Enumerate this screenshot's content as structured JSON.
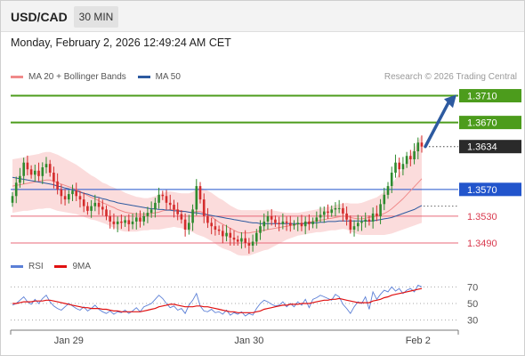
{
  "header": {
    "symbol": "USD/CAD",
    "timeframe": "30 MIN",
    "datetime": "Monday, February 2, 2026 12:49:24 AM CET"
  },
  "legend": {
    "main": [
      {
        "label": "MA 20 + Bollinger Bands",
        "color": "#f08a8a"
      },
      {
        "label": "MA 50",
        "color": "#2d5aa0"
      }
    ],
    "indicator": [
      {
        "label": "RSI",
        "color": "#5b7fd6"
      },
      {
        "label": "9MA",
        "color": "#e01010"
      }
    ],
    "source": "Research © 2026 Trading Central"
  },
  "colors": {
    "bull": "#2e8b2e",
    "bear": "#d42c2c",
    "target": "#4c9c1c",
    "pivot": "#2255cc",
    "support": "#e86a7a",
    "current": "#2a2a2a",
    "band": "#fbdcdc",
    "arrow": "#2d5aa0"
  },
  "chart_data": [
    {
      "type": "candlestick",
      "instrument": "USD/CAD",
      "interval": "30 MIN",
      "ylim": [
        1.3478,
        1.3728
      ],
      "x_ticks": [
        {
          "label": "Jan 29",
          "index": 15
        },
        {
          "label": "Jan 30",
          "index": 63
        },
        {
          "label": "Feb 2",
          "index": 108
        }
      ],
      "levels": [
        {
          "value": 1.371,
          "label": "1.3710",
          "kind": "target"
        },
        {
          "value": 1.367,
          "label": "1.3670",
          "kind": "target"
        },
        {
          "value": 1.3634,
          "label": "1.3634",
          "kind": "current"
        },
        {
          "value": 1.357,
          "label": "1.3570",
          "kind": "pivot"
        },
        {
          "value": 1.353,
          "label": "1.3530",
          "kind": "support"
        },
        {
          "value": 1.349,
          "label": "1.3490",
          "kind": "support"
        }
      ],
      "forecast_arrow": {
        "from": 1.3634,
        "to": 1.3705
      },
      "close": [
        1.356,
        1.358,
        1.359,
        1.361,
        1.36,
        1.3592,
        1.3598,
        1.359,
        1.3603,
        1.3608,
        1.3595,
        1.3582,
        1.357,
        1.356,
        1.3555,
        1.3563,
        1.3568,
        1.356,
        1.3555,
        1.3545,
        1.3538,
        1.3545,
        1.355,
        1.3544,
        1.354,
        1.353,
        1.3522,
        1.3518,
        1.3522,
        1.352,
        1.3524,
        1.3518,
        1.3522,
        1.3528,
        1.3522,
        1.353,
        1.3535,
        1.354,
        1.355,
        1.3562,
        1.356,
        1.355,
        1.3547,
        1.354,
        1.3533,
        1.3525,
        1.351,
        1.352,
        1.354,
        1.3575,
        1.3555,
        1.353,
        1.352,
        1.3515,
        1.351,
        1.3508,
        1.35,
        1.3505,
        1.3498,
        1.3495,
        1.3492,
        1.3497,
        1.349,
        1.3486,
        1.3492,
        1.3505,
        1.3515,
        1.3522,
        1.353,
        1.3525,
        1.352,
        1.3518,
        1.3522,
        1.352,
        1.3516,
        1.3518,
        1.352,
        1.3515,
        1.3522,
        1.3518,
        1.3522,
        1.3528,
        1.3532,
        1.3537,
        1.3535,
        1.354,
        1.3542,
        1.3542,
        1.3534,
        1.3525,
        1.351,
        1.3515,
        1.352,
        1.3522,
        1.3525,
        1.3522,
        1.3534,
        1.353,
        1.3548,
        1.3562,
        1.3575,
        1.3595,
        1.361,
        1.36,
        1.3608,
        1.362,
        1.3615,
        1.3627,
        1.364,
        1.3634
      ],
      "open": [
        1.355,
        1.356,
        1.358,
        1.359,
        1.361,
        1.36,
        1.3592,
        1.3598,
        1.359,
        1.3603,
        1.3608,
        1.3595,
        1.3582,
        1.357,
        1.356,
        1.3555,
        1.3563,
        1.3568,
        1.356,
        1.3555,
        1.3545,
        1.3538,
        1.3545,
        1.355,
        1.3544,
        1.354,
        1.353,
        1.3522,
        1.3518,
        1.3522,
        1.352,
        1.3524,
        1.3518,
        1.3522,
        1.3528,
        1.3522,
        1.353,
        1.3535,
        1.354,
        1.355,
        1.3562,
        1.356,
        1.355,
        1.3547,
        1.354,
        1.3533,
        1.3525,
        1.351,
        1.352,
        1.354,
        1.3575,
        1.3555,
        1.353,
        1.352,
        1.3515,
        1.351,
        1.3508,
        1.35,
        1.3505,
        1.3498,
        1.3495,
        1.3492,
        1.3497,
        1.349,
        1.3486,
        1.3492,
        1.3505,
        1.3515,
        1.3522,
        1.353,
        1.3525,
        1.352,
        1.3518,
        1.3522,
        1.352,
        1.3516,
        1.3518,
        1.352,
        1.3515,
        1.3522,
        1.3518,
        1.3522,
        1.3528,
        1.3532,
        1.3537,
        1.3535,
        1.354,
        1.3542,
        1.3542,
        1.3534,
        1.3525,
        1.351,
        1.3515,
        1.352,
        1.3522,
        1.3525,
        1.3522,
        1.3534,
        1.353,
        1.3548,
        1.3562,
        1.3575,
        1.3595,
        1.361,
        1.36,
        1.3608,
        1.362,
        1.3615,
        1.3627,
        1.364
      ],
      "ma20": [
        1.3575,
        1.3576,
        1.3577,
        1.3578,
        1.3579,
        1.358,
        1.3581,
        1.3582,
        1.3583,
        1.3584,
        1.3584,
        1.3582,
        1.358,
        1.3578,
        1.3576,
        1.3574,
        1.3572,
        1.357,
        1.3567,
        1.3564,
        1.3561,
        1.3558,
        1.3556,
        1.3553,
        1.355,
        1.3548,
        1.3545,
        1.3543,
        1.354,
        1.3538,
        1.3536,
        1.3535,
        1.3534,
        1.3533,
        1.3533,
        1.3533,
        1.3533,
        1.3534,
        1.3535,
        1.3536,
        1.3538,
        1.3539,
        1.354,
        1.354,
        1.3539,
        1.3538,
        1.3537,
        1.3536,
        1.3536,
        1.3537,
        1.3537,
        1.3535,
        1.3532,
        1.3529,
        1.3525,
        1.3521,
        1.3518,
        1.3515,
        1.3512,
        1.3509,
        1.3506,
        1.3505,
        1.3505,
        1.3505,
        1.3506,
        1.3507,
        1.3508,
        1.3509,
        1.351,
        1.3511,
        1.3512,
        1.3513,
        1.3514,
        1.3515,
        1.3516,
        1.3517,
        1.3518,
        1.3519,
        1.352,
        1.3521,
        1.3522,
        1.3523,
        1.3524,
        1.3525,
        1.3526,
        1.3527,
        1.3528,
        1.3529,
        1.353,
        1.353,
        1.3528,
        1.3527,
        1.3526,
        1.3526,
        1.3527,
        1.3528,
        1.3529,
        1.353,
        1.3532,
        1.3534,
        1.3537,
        1.3541,
        1.3546,
        1.3551,
        1.3556,
        1.3562,
        1.3568,
        1.3574,
        1.358,
        1.3586
      ],
      "bb_width": [
        0.004,
        0.004,
        0.004,
        0.004,
        0.0041,
        0.0041,
        0.0041,
        0.0041,
        0.0042,
        0.0042,
        0.0042,
        0.0042,
        0.0042,
        0.0041,
        0.004,
        0.0039,
        0.0038,
        0.0037,
        0.0036,
        0.0035,
        0.0034,
        0.0033,
        0.0032,
        0.0031,
        0.003,
        0.003,
        0.003,
        0.003,
        0.003,
        0.003,
        0.0029,
        0.0028,
        0.0027,
        0.0026,
        0.0025,
        0.0024,
        0.0024,
        0.0024,
        0.0025,
        0.0026,
        0.0027,
        0.0027,
        0.0027,
        0.0026,
        0.0026,
        0.0026,
        0.0027,
        0.0028,
        0.003,
        0.0034,
        0.0036,
        0.0036,
        0.0036,
        0.0036,
        0.0036,
        0.0036,
        0.0036,
        0.0035,
        0.0034,
        0.0034,
        0.0034,
        0.0034,
        0.0034,
        0.0034,
        0.0033,
        0.0032,
        0.0031,
        0.003,
        0.003,
        0.0028,
        0.0026,
        0.0024,
        0.0022,
        0.002,
        0.0019,
        0.0018,
        0.0017,
        0.0017,
        0.0017,
        0.0017,
        0.0017,
        0.0017,
        0.0018,
        0.0018,
        0.0018,
        0.0018,
        0.0019,
        0.0019,
        0.0019,
        0.002,
        0.0021,
        0.0022,
        0.0023,
        0.0024,
        0.0025,
        0.0026,
        0.0027,
        0.0028,
        0.003,
        0.0032,
        0.0034,
        0.0037,
        0.004,
        0.0043,
        0.0046,
        0.005,
        0.0054,
        0.0058,
        0.0062,
        0.0066
      ],
      "ma50": [
        1.3588,
        1.3587,
        1.3586,
        1.3585,
        1.3584,
        1.3583,
        1.3582,
        1.3581,
        1.358,
        1.3579,
        1.3578,
        1.3577,
        1.3575,
        1.3574,
        1.3572,
        1.3571,
        1.3569,
        1.3568,
        1.3566,
        1.3564,
        1.3563,
        1.3561,
        1.3559,
        1.3558,
        1.3556,
        1.3555,
        1.3553,
        1.3552,
        1.355,
        1.3549,
        1.3548,
        1.3547,
        1.3546,
        1.3545,
        1.3544,
        1.3543,
        1.3542,
        1.3541,
        1.3541,
        1.354,
        1.354,
        1.3539,
        1.3539,
        1.3538,
        1.3538,
        1.3537,
        1.3537,
        1.3536,
        1.3535,
        1.3535,
        1.3534,
        1.3533,
        1.3532,
        1.3531,
        1.353,
        1.3529,
        1.3528,
        1.3527,
        1.3526,
        1.3525,
        1.3524,
        1.3523,
        1.3522,
        1.3521,
        1.352,
        1.352,
        1.3519,
        1.3519,
        1.3519,
        1.3519,
        1.3519,
        1.3519,
        1.3519,
        1.3519,
        1.3519,
        1.3519,
        1.3519,
        1.3519,
        1.3519,
        1.352,
        1.352,
        1.352,
        1.3521,
        1.3521,
        1.3522,
        1.3522,
        1.3522,
        1.3523,
        1.3523,
        1.3523,
        1.3523,
        1.3523,
        1.3523,
        1.3523,
        1.3523,
        1.3523,
        1.3523,
        1.3524,
        1.3525,
        1.3526,
        1.3527,
        1.3528,
        1.353,
        1.3532,
        1.3534,
        1.3536,
        1.3538,
        1.354,
        1.3543,
        1.3546
      ]
    },
    {
      "type": "line",
      "name": "RSI",
      "ylim": [
        20,
        80
      ],
      "y_ticks": [
        70,
        50,
        30
      ],
      "series": [
        {
          "name": "RSI",
          "values": [
            48,
            50,
            54,
            58,
            52,
            49,
            55,
            50,
            56,
            60,
            52,
            47,
            44,
            42,
            46,
            50,
            47,
            44,
            42,
            46,
            41,
            44,
            48,
            43,
            40,
            38,
            41,
            37,
            40,
            39,
            42,
            38,
            41,
            45,
            40,
            46,
            48,
            50,
            55,
            60,
            56,
            50,
            45,
            47,
            42,
            44,
            38,
            48,
            54,
            62,
            47,
            41,
            40,
            43,
            39,
            40,
            37,
            42,
            36,
            39,
            37,
            40,
            35,
            38,
            36,
            44,
            50,
            54,
            52,
            49,
            47,
            48,
            52,
            46,
            50,
            46,
            52,
            48,
            55,
            45,
            55,
            57,
            60,
            58,
            56,
            54,
            61,
            58,
            49,
            44,
            38,
            46,
            52,
            50,
            58,
            43,
            64,
            55,
            61,
            66,
            64,
            70,
            65,
            68,
            62,
            66,
            68,
            64,
            72,
            70
          ]
        },
        {
          "name": "9MA",
          "values": [
            50,
            50,
            51,
            52,
            52,
            52,
            53,
            53,
            53,
            54,
            54,
            53,
            52,
            51,
            50,
            49,
            48,
            47,
            46,
            45,
            45,
            44,
            44,
            44,
            43,
            43,
            42,
            41,
            41,
            40,
            40,
            40,
            40,
            40,
            40,
            41,
            42,
            43,
            44,
            46,
            47,
            48,
            49,
            49,
            48,
            47,
            46,
            46,
            46,
            47,
            47,
            46,
            46,
            45,
            44,
            43,
            42,
            41,
            40,
            40,
            39,
            39,
            39,
            39,
            39,
            40,
            41,
            43,
            44,
            45,
            46,
            47,
            48,
            48,
            49,
            49,
            49,
            50,
            50,
            50,
            51,
            52,
            53,
            54,
            54,
            55,
            55,
            56,
            55,
            54,
            53,
            52,
            51,
            51,
            51,
            51,
            53,
            54,
            55,
            57,
            58,
            60,
            61,
            62,
            63,
            64,
            65,
            66,
            67,
            68
          ]
        }
      ]
    }
  ]
}
